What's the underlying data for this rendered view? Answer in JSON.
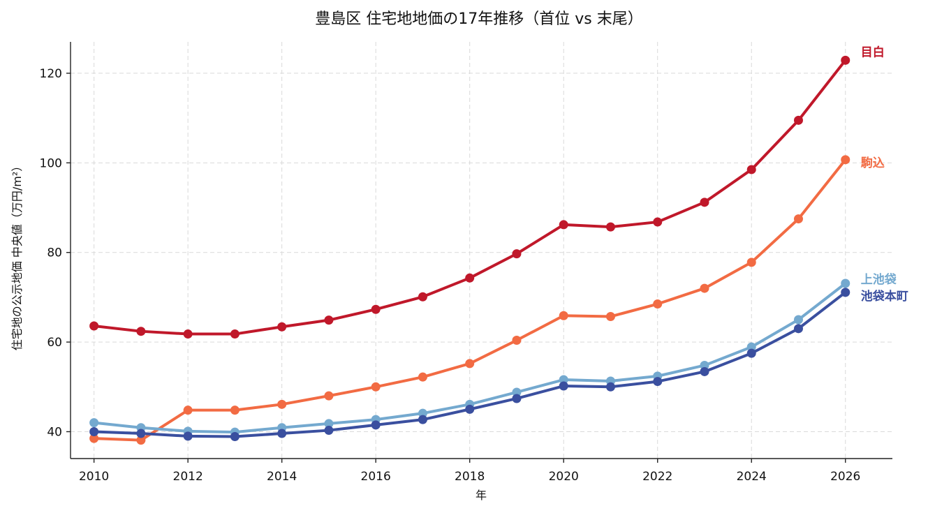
{
  "chart_data": {
    "type": "line",
    "title": "豊島区 住宅地地価の17年推移（首位 vs 末尾）",
    "xlabel": "年",
    "ylabel": "住宅地の公示地価 中央値（万円/m²）",
    "xlim": [
      2009.5,
      2027
    ],
    "ylim": [
      34,
      127
    ],
    "xticks": [
      2010,
      2012,
      2014,
      2016,
      2018,
      2020,
      2022,
      2024,
      2026
    ],
    "yticks": [
      40,
      60,
      80,
      100,
      120
    ],
    "grid": true,
    "x": [
      2010,
      2011,
      2012,
      2013,
      2014,
      2015,
      2016,
      2017,
      2018,
      2019,
      2020,
      2021,
      2022,
      2023,
      2024,
      2025,
      2026
    ],
    "series": [
      {
        "name": "目白",
        "color": "#c0182a",
        "values": [
          63.6,
          62.4,
          61.8,
          61.8,
          63.4,
          64.9,
          67.3,
          70.1,
          74.3,
          79.7,
          86.2,
          85.7,
          86.8,
          91.2,
          98.5,
          109.5,
          122.9
        ]
      },
      {
        "name": "駒込",
        "color": "#f26b43",
        "values": [
          38.5,
          38.1,
          44.8,
          44.8,
          46.1,
          48.0,
          50.0,
          52.2,
          55.2,
          60.4,
          65.9,
          65.7,
          68.5,
          72.0,
          77.8,
          87.5,
          100.7
        ]
      },
      {
        "name": "上池袋",
        "color": "#74a9cf",
        "values": [
          42.0,
          40.9,
          40.1,
          39.9,
          40.9,
          41.8,
          42.7,
          44.1,
          46.1,
          48.8,
          51.6,
          51.3,
          52.4,
          54.8,
          58.9,
          65.0,
          73.1
        ]
      },
      {
        "name": "池袋本町",
        "color": "#3a4f9f",
        "values": [
          40.0,
          39.6,
          39.0,
          38.9,
          39.6,
          40.3,
          41.5,
          42.7,
          45.0,
          47.4,
          50.2,
          50.0,
          51.2,
          53.4,
          57.5,
          63.0,
          71.1
        ]
      }
    ]
  }
}
